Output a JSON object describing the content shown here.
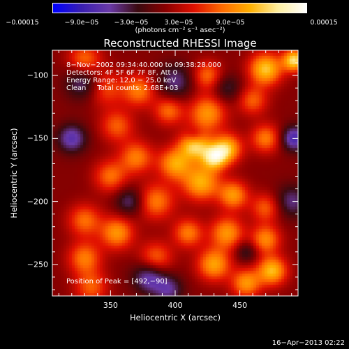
{
  "chart_data": {
    "type": "heatmap",
    "title": "Reconstructed RHESSI Image",
    "xlabel": "Heliocentric X (arcsec)",
    "ylabel": "Heliocentric Y (arcsec)",
    "xlim": [
      305,
      495
    ],
    "ylim": [
      -275,
      -80
    ],
    "xticks": [
      350,
      400,
      450
    ],
    "xtick_labels": [
      "350",
      "400",
      "450"
    ],
    "yticks": [
      -100,
      -150,
      -200,
      -250
    ],
    "ytick_labels": [
      "−100",
      "−150",
      "−200",
      "−250"
    ],
    "colorbar": {
      "min": -0.00015,
      "max": 0.00015,
      "tick_labels": [
        "−0.00015",
        "−9.0e−05",
        "−3.0e−05",
        "3.0e−05",
        "9.0e−05",
        "0.00015"
      ],
      "unit_label": "(photons cm⁻² s⁻¹ asec⁻²)",
      "colors": [
        "#0000ff",
        "#3a1fb0",
        "#6a3aa8",
        "#3b0a10",
        "#8a0000",
        "#e01000",
        "#ff6a00",
        "#ffb000",
        "#fff0a0",
        "#ffffff"
      ]
    },
    "annotations": {
      "time_range": "8−Nov−2002 09:34:40.000 to 09:38:28.000",
      "detectors": "Detectors: 4F 5F 6F 7F 8F, Att 0",
      "energy_range": "Energy Range: 12.0 − 25.0 keV",
      "method": "Clean     Total counts: 2.68E+03",
      "peak": "Position of Peak = [492,−90]"
    },
    "blobs": [
      {
        "x": 330,
        "y": -88,
        "amp": 0.6,
        "s": 9
      },
      {
        "x": 470,
        "y": -95,
        "amp": 0.9,
        "s": 9
      },
      {
        "x": 492,
        "y": -88,
        "amp": 1.0,
        "s": 6
      },
      {
        "x": 345,
        "y": -110,
        "amp": 0.5,
        "s": 10
      },
      {
        "x": 372,
        "y": -112,
        "amp": 0.6,
        "s": 9
      },
      {
        "x": 425,
        "y": -100,
        "amp": 0.55,
        "s": 8
      },
      {
        "x": 460,
        "y": -120,
        "amp": 0.5,
        "s": 8
      },
      {
        "x": 425,
        "y": -130,
        "amp": 0.7,
        "s": 10
      },
      {
        "x": 395,
        "y": -128,
        "amp": 0.55,
        "s": 8
      },
      {
        "x": 355,
        "y": -140,
        "amp": 0.5,
        "s": 9
      },
      {
        "x": 470,
        "y": -150,
        "amp": 0.6,
        "s": 8
      },
      {
        "x": 415,
        "y": -155,
        "amp": 0.95,
        "s": 8
      },
      {
        "x": 440,
        "y": -158,
        "amp": 0.85,
        "s": 8
      },
      {
        "x": 430,
        "y": -165,
        "amp": 0.9,
        "s": 7
      },
      {
        "x": 400,
        "y": -170,
        "amp": 0.75,
        "s": 9
      },
      {
        "x": 370,
        "y": -165,
        "amp": 0.6,
        "s": 9
      },
      {
        "x": 350,
        "y": -180,
        "amp": 0.55,
        "s": 9
      },
      {
        "x": 420,
        "y": -185,
        "amp": 0.8,
        "s": 10
      },
      {
        "x": 445,
        "y": -195,
        "amp": 0.7,
        "s": 8
      },
      {
        "x": 385,
        "y": -200,
        "amp": 0.6,
        "s": 10
      },
      {
        "x": 470,
        "y": -205,
        "amp": 0.5,
        "s": 8
      },
      {
        "x": 330,
        "y": -215,
        "amp": 0.55,
        "s": 9
      },
      {
        "x": 355,
        "y": -225,
        "amp": 0.7,
        "s": 9
      },
      {
        "x": 410,
        "y": -225,
        "amp": 0.6,
        "s": 8
      },
      {
        "x": 440,
        "y": -225,
        "amp": 0.7,
        "s": 9
      },
      {
        "x": 470,
        "y": -230,
        "amp": 0.65,
        "s": 8
      },
      {
        "x": 330,
        "y": -245,
        "amp": 0.6,
        "s": 9
      },
      {
        "x": 385,
        "y": -245,
        "amp": 0.55,
        "s": 9
      },
      {
        "x": 430,
        "y": -250,
        "amp": 0.75,
        "s": 9
      },
      {
        "x": 475,
        "y": -255,
        "amp": 0.85,
        "s": 8
      },
      {
        "x": 455,
        "y": -265,
        "amp": 0.7,
        "s": 8
      },
      {
        "x": 335,
        "y": -268,
        "amp": 0.5,
        "s": 9
      },
      {
        "x": 330,
        "y": -105,
        "amp": -0.55,
        "s": 10
      },
      {
        "x": 320,
        "y": -150,
        "amp": -0.6,
        "s": 8
      },
      {
        "x": 365,
        "y": -200,
        "amp": -0.45,
        "s": 8
      },
      {
        "x": 400,
        "y": -105,
        "amp": -0.45,
        "s": 10
      },
      {
        "x": 415,
        "y": -148,
        "amp": -0.35,
        "s": 5
      },
      {
        "x": 380,
        "y": -260,
        "amp": -0.6,
        "s": 9
      },
      {
        "x": 455,
        "y": -240,
        "amp": -0.35,
        "s": 6
      },
      {
        "x": 492,
        "y": -150,
        "amp": -0.7,
        "s": 7
      },
      {
        "x": 490,
        "y": -200,
        "amp": -0.45,
        "s": 9
      },
      {
        "x": 440,
        "y": -110,
        "amp": -0.35,
        "s": 8
      },
      {
        "x": 395,
        "y": -270,
        "amp": -0.45,
        "s": 8
      }
    ]
  },
  "footer": {
    "date_stamp": "16−Apr−2013 02:22"
  }
}
